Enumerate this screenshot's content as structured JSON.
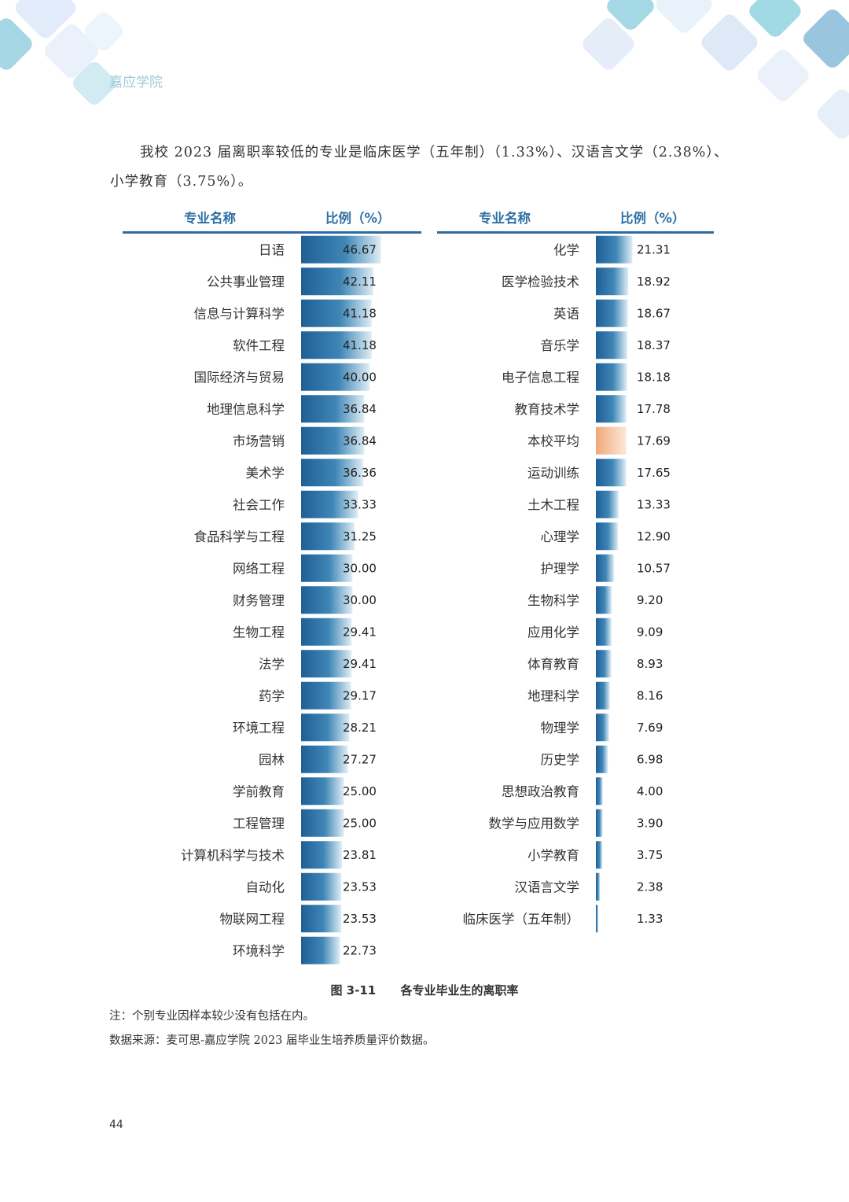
{
  "header": {
    "school": "嘉应学院"
  },
  "intro": "我校 2023 届离职率较低的专业是临床医学（五年制）（1.33%）、汉语言文学（2.38%）、小学教育（3.75%）。",
  "table_headers": {
    "left_name": "专业名称",
    "left_ratio": "比例（%）",
    "right_name": "专业名称",
    "right_ratio": "比例（%）"
  },
  "colors": {
    "bar": "#2c6fa6",
    "average_bar": "#f2b48a",
    "rule": "#2c6aa0",
    "heading": "#2f6fa5"
  },
  "chart_data": [
    {
      "type": "bar",
      "orientation": "horizontal",
      "categories": [
        "日语",
        "公共事业管理",
        "信息与计算科学",
        "软件工程",
        "国际经济与贸易",
        "地理信息科学",
        "市场营销",
        "美术学",
        "社会工作",
        "食品科学与工程",
        "网络工程",
        "财务管理",
        "生物工程",
        "法学",
        "药学",
        "环境工程",
        "园林",
        "学前教育",
        "工程管理",
        "计算机科学与技术",
        "自动化",
        "物联网工程",
        "环境科学"
      ],
      "values": [
        46.67,
        42.11,
        41.18,
        41.18,
        40.0,
        36.84,
        36.84,
        36.36,
        33.33,
        31.25,
        30.0,
        30.0,
        29.41,
        29.41,
        29.17,
        28.21,
        27.27,
        25.0,
        25.0,
        23.81,
        23.53,
        23.53,
        22.73
      ],
      "value_labels": [
        "46.67",
        "42.11",
        "41.18",
        "41.18",
        "40.00",
        "36.84",
        "36.84",
        "36.36",
        "33.33",
        "31.25",
        "30.00",
        "30.00",
        "29.41",
        "29.41",
        "29.17",
        "28.21",
        "27.27",
        "25.00",
        "25.00",
        "23.81",
        "23.53",
        "23.53",
        "22.73"
      ]
    },
    {
      "type": "bar",
      "orientation": "horizontal",
      "categories": [
        "化学",
        "医学检验技术",
        "英语",
        "音乐学",
        "电子信息工程",
        "教育技术学",
        "本校平均",
        "运动训练",
        "土木工程",
        "心理学",
        "护理学",
        "生物科学",
        "应用化学",
        "体育教育",
        "地理科学",
        "物理学",
        "历史学",
        "思想政治教育",
        "数学与应用数学",
        "小学教育",
        "汉语言文学",
        "临床医学（五年制）"
      ],
      "values": [
        21.31,
        18.92,
        18.67,
        18.37,
        18.18,
        17.78,
        17.69,
        17.65,
        13.33,
        12.9,
        10.57,
        9.2,
        9.09,
        8.93,
        8.16,
        7.69,
        6.98,
        4.0,
        3.9,
        3.75,
        2.38,
        1.33
      ],
      "value_labels": [
        "21.31",
        "18.92",
        "18.67",
        "18.37",
        "18.18",
        "17.78",
        "17.69",
        "17.65",
        "13.33",
        "12.90",
        "10.57",
        "9.20",
        "9.09",
        "8.93",
        "8.16",
        "7.69",
        "6.98",
        "4.00",
        "3.90",
        "3.75",
        "2.38",
        "1.33"
      ],
      "highlight": "本校平均"
    }
  ],
  "caption": {
    "figure_no": "图 3-11",
    "title": "各专业毕业生的离职率"
  },
  "notes": {
    "note": "注：个别专业因样本较少没有包括在内。",
    "source": "数据来源：麦可思-嘉应学院 2023 届毕业生培养质量评价数据。"
  },
  "page_number": "44"
}
